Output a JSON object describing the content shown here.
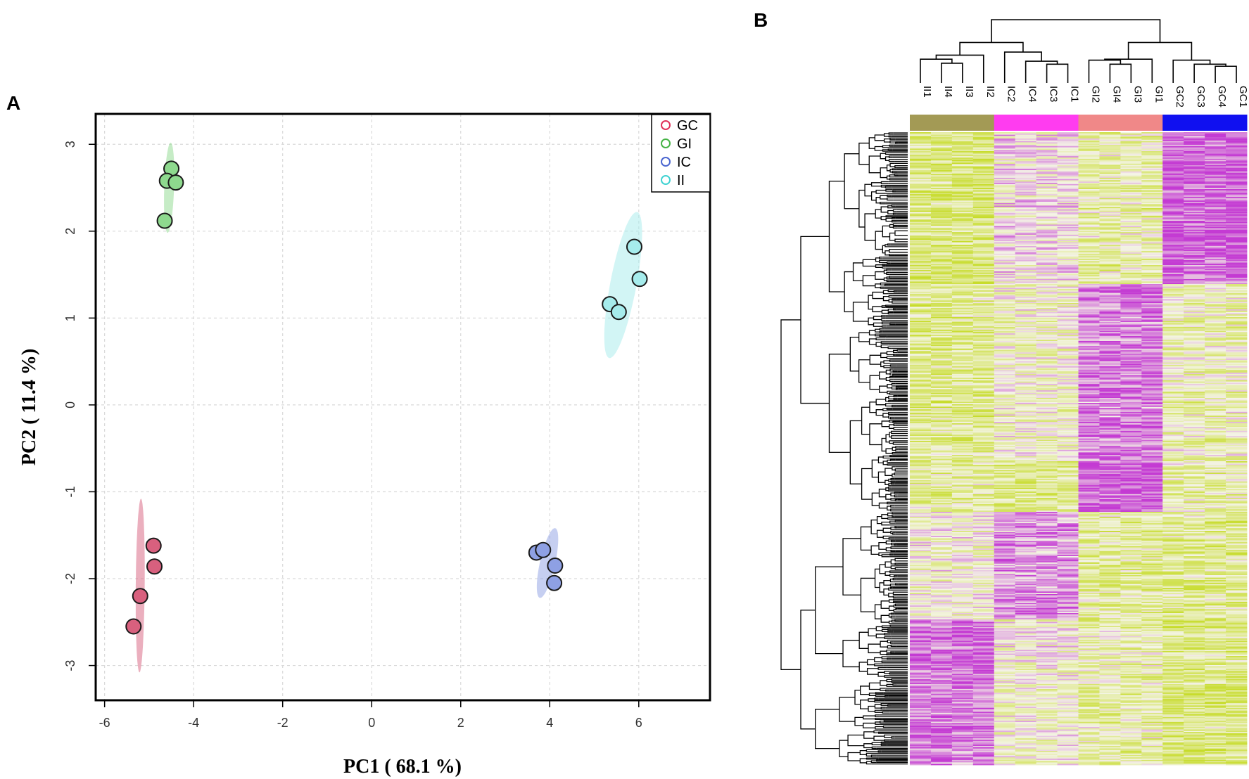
{
  "panels": {
    "a_label": "A",
    "b_label": "B"
  },
  "chart_data": [
    {
      "type": "scatter",
      "title": "",
      "xlabel": "PC1 ( 68.1 %)",
      "ylabel": "PC2 ( 11.4 %)",
      "xlim": [
        -6.2,
        7.6
      ],
      "ylim": [
        -3.4,
        3.35
      ],
      "xticks": [
        -6,
        -4,
        -2,
        0,
        2,
        4,
        6
      ],
      "yticks": [
        -3,
        -2,
        -1,
        0,
        1,
        2,
        3
      ],
      "xtick_labels": [
        "-6",
        "-4",
        "-2",
        "0",
        "2",
        "4",
        "6"
      ],
      "ytick_labels": [
        "-3",
        "-2",
        "-1",
        "0",
        "1",
        "2",
        "3"
      ],
      "grid": true,
      "legend_position": "top-right",
      "series": [
        {
          "name": "GC",
          "color": "#e0315a",
          "fill": "#d8607e",
          "points": [
            [
              -4.9,
              -1.62
            ],
            [
              -4.88,
              -1.86
            ],
            [
              -5.2,
              -2.2
            ],
            [
              -5.35,
              -2.55
            ]
          ],
          "ellipse": {
            "center": [
              -5.2,
              -2.08
            ],
            "semi_major": 1.0,
            "semi_minor": 0.1,
            "angle_deg": 89
          }
        },
        {
          "name": "GI",
          "color": "#45b345",
          "fill": "#8ed98e",
          "points": [
            [
              -4.5,
              2.72
            ],
            [
              -4.6,
              2.58
            ],
            [
              -4.4,
              2.56
            ],
            [
              -4.65,
              2.12
            ]
          ],
          "ellipse": {
            "center": [
              -4.55,
              2.5
            ],
            "semi_major": 0.52,
            "semi_minor": 0.11,
            "angle_deg": 86
          }
        },
        {
          "name": "IC",
          "color": "#4a66d0",
          "fill": "#8ea0e4",
          "points": [
            [
              3.7,
              -1.7
            ],
            [
              3.85,
              -1.67
            ],
            [
              4.12,
              -1.85
            ],
            [
              4.1,
              -2.05
            ]
          ],
          "ellipse": {
            "center": [
              3.95,
              -1.82
            ],
            "semi_major": 0.44,
            "semi_minor": 0.16,
            "angle_deg": 64
          }
        },
        {
          "name": "II",
          "color": "#3fd2d2",
          "fill": "#a6ecec",
          "points": [
            [
              5.9,
              1.82
            ],
            [
              6.02,
              1.45
            ],
            [
              5.35,
              1.16
            ],
            [
              5.55,
              1.07
            ]
          ],
          "ellipse": {
            "center": [
              5.65,
              1.38
            ],
            "semi_major": 0.9,
            "semi_minor": 0.28,
            "angle_deg": 68
          }
        }
      ]
    },
    {
      "type": "heatmap",
      "title": "",
      "columns": [
        "II1",
        "II4",
        "II3",
        "II2",
        "IC2",
        "IC4",
        "IC3",
        "IC1",
        "GI2",
        "GI4",
        "GI3",
        "GI1",
        "GC2",
        "GC3",
        "GC4",
        "GC1"
      ],
      "column_groups": [
        {
          "name": "II",
          "color": "#a39a55"
        },
        {
          "name": "IC",
          "color": "#ff3cf0"
        },
        {
          "name": "GI",
          "color": "#f08888"
        },
        {
          "name": "GC",
          "color": "#1010f0"
        }
      ],
      "colormap": [
        "#c43bd3",
        "#f4f4e6",
        "#c7dc2b"
      ],
      "row_count": 500,
      "row_bands": [
        {
          "end": 0.24,
          "means": [
            0.62,
            0.62,
            0.62,
            0.62,
            -0.12,
            -0.12,
            -0.12,
            -0.12,
            0.3,
            0.3,
            0.3,
            0.3,
            -0.85,
            -0.85,
            -0.85,
            -0.85
          ]
        },
        {
          "end": 0.52,
          "means": [
            0.48,
            0.48,
            0.48,
            0.48,
            0.12,
            0.12,
            0.12,
            0.12,
            -0.72,
            -0.72,
            -0.72,
            -0.72,
            0.22,
            0.22,
            0.22,
            0.22
          ]
        },
        {
          "end": 0.6,
          "means": [
            0.42,
            0.42,
            0.42,
            0.42,
            0.55,
            0.55,
            0.55,
            0.55,
            -0.9,
            -0.9,
            -0.9,
            -0.9,
            0.32,
            0.32,
            0.32,
            0.32
          ]
        },
        {
          "end": 0.77,
          "means": [
            0.05,
            0.05,
            0.05,
            0.05,
            -0.55,
            -0.55,
            -0.55,
            -0.55,
            0.42,
            0.42,
            0.42,
            0.42,
            0.48,
            0.48,
            0.48,
            0.48
          ]
        },
        {
          "end": 1.0,
          "means": [
            -0.72,
            -0.72,
            -0.72,
            -0.72,
            0.05,
            0.05,
            0.05,
            0.05,
            0.28,
            0.28,
            0.28,
            0.28,
            0.55,
            0.55,
            0.55,
            0.55
          ]
        }
      ],
      "column_dendrogram": {
        "merges": [
          [
            1,
            2,
            0.14
          ],
          [
            16,
            0,
            0.22
          ],
          [
            17,
            3,
            0.3
          ],
          [
            6,
            7,
            0.12
          ],
          [
            5,
            19,
            0.18
          ],
          [
            4,
            20,
            0.36
          ],
          [
            18,
            21,
            0.55
          ],
          [
            9,
            10,
            0.12
          ],
          [
            23,
            8,
            0.2
          ],
          [
            24,
            11,
            0.22
          ],
          [
            14,
            15,
            0.08
          ],
          [
            26,
            13,
            0.12
          ],
          [
            27,
            12,
            0.2
          ],
          [
            25,
            28,
            0.55
          ],
          [
            22,
            29,
            1.0
          ]
        ]
      },
      "row_dendrogram": {
        "clusters": 2,
        "split_fraction": 0.6
      }
    }
  ]
}
